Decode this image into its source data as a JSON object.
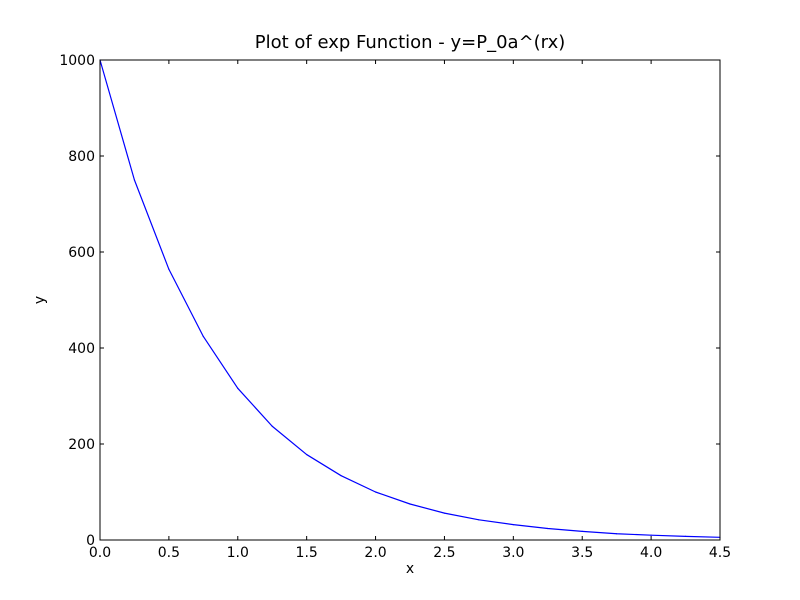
{
  "chart_data": {
    "type": "line",
    "title": "Plot of exp Function - y=P_0a^(rx)",
    "xlabel": "x",
    "ylabel": "y",
    "xlim": [
      0,
      4.5
    ],
    "ylim": [
      0,
      1000
    ],
    "x_ticks": [
      "0.0",
      "0.5",
      "1.0",
      "1.5",
      "2.0",
      "2.5",
      "3.0",
      "3.5",
      "4.0",
      "4.5"
    ],
    "y_ticks": [
      "0",
      "200",
      "400",
      "600",
      "800",
      "1000"
    ],
    "grid": false,
    "series": [
      {
        "color": "#0000ff",
        "x": [
          0.0,
          0.25,
          0.5,
          0.75,
          1.0,
          1.25,
          1.5,
          1.75,
          2.0,
          2.25,
          2.5,
          2.75,
          3.0,
          3.25,
          3.5,
          3.75,
          4.0,
          4.25,
          4.5
        ],
        "y": [
          1000,
          750,
          564,
          424,
          316,
          237,
          178,
          134,
          100,
          75,
          56,
          42,
          32,
          24,
          18,
          13,
          10,
          7.5,
          5.6
        ]
      }
    ]
  }
}
